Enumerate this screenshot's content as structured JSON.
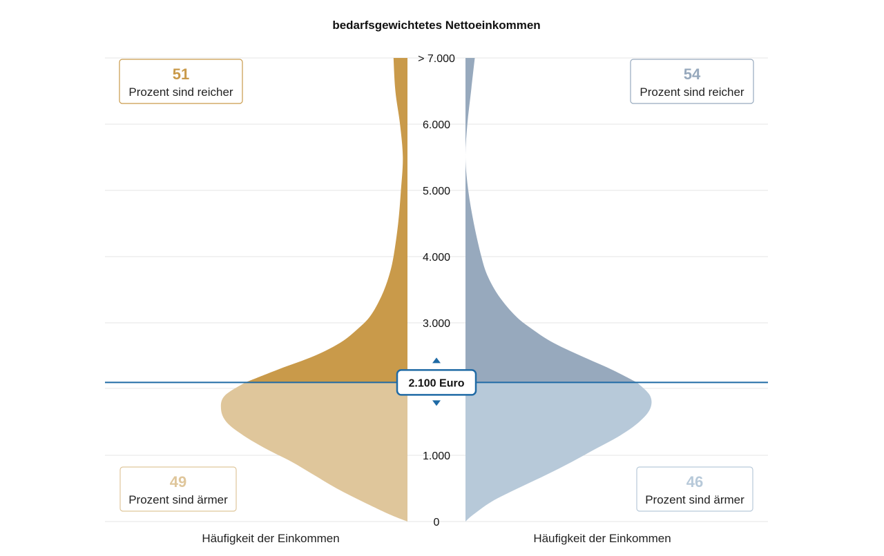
{
  "chart_data": {
    "type": "violin",
    "title": "bedarfsgewichtetes Nettoeinkommen",
    "y_ticks": [
      {
        "value": 0,
        "label": "0"
      },
      {
        "value": 1000,
        "label": "1.000"
      },
      {
        "value": 3000,
        "label": "3.000"
      },
      {
        "value": 4000,
        "label": "4.000"
      },
      {
        "value": 5000,
        "label": "5.000"
      },
      {
        "value": 6000,
        "label": "6.000"
      },
      {
        "value": 7000,
        "label": "> 7.000"
      }
    ],
    "ylim": [
      0,
      7000
    ],
    "grid": true,
    "marker": {
      "value": 2100,
      "label": "2.100 Euro",
      "color": "#1f6aa5"
    },
    "series": [
      {
        "side": "left",
        "xlabel": "Häufigkeit der Einkommen",
        "color_above": "#c99a4a",
        "color_below": "#dfc69b",
        "density": [
          [
            0,
            0.0
          ],
          [
            100,
            0.09
          ],
          [
            300,
            0.24
          ],
          [
            500,
            0.38
          ],
          [
            700,
            0.5
          ],
          [
            900,
            0.62
          ],
          [
            1100,
            0.76
          ],
          [
            1300,
            0.88
          ],
          [
            1500,
            0.97
          ],
          [
            1700,
            1.0
          ],
          [
            1900,
            0.98
          ],
          [
            2100,
            0.87
          ],
          [
            2300,
            0.69
          ],
          [
            2500,
            0.5
          ],
          [
            2700,
            0.36
          ],
          [
            2900,
            0.27
          ],
          [
            3100,
            0.2
          ],
          [
            3400,
            0.14
          ],
          [
            3700,
            0.1
          ],
          [
            4000,
            0.075
          ],
          [
            4500,
            0.05
          ],
          [
            5000,
            0.035
          ],
          [
            5500,
            0.025
          ],
          [
            6000,
            0.04
          ],
          [
            6500,
            0.065
          ],
          [
            7000,
            0.075
          ]
        ],
        "above": {
          "percent": "51",
          "text": "Prozent sind reicher"
        },
        "below": {
          "percent": "49",
          "text": "Prozent sind ärmer"
        }
      },
      {
        "side": "right",
        "xlabel": "Häufigkeit der Einkommen",
        "color_above": "#97a9bd",
        "color_below": "#b7c9d9",
        "density": [
          [
            0,
            0.0
          ],
          [
            100,
            0.04
          ],
          [
            300,
            0.14
          ],
          [
            500,
            0.28
          ],
          [
            700,
            0.43
          ],
          [
            900,
            0.57
          ],
          [
            1100,
            0.7
          ],
          [
            1300,
            0.83
          ],
          [
            1500,
            0.93
          ],
          [
            1700,
            0.99
          ],
          [
            1900,
            0.99
          ],
          [
            2100,
            0.92
          ],
          [
            2300,
            0.78
          ],
          [
            2500,
            0.62
          ],
          [
            2700,
            0.47
          ],
          [
            2900,
            0.36
          ],
          [
            3100,
            0.27
          ],
          [
            3400,
            0.18
          ],
          [
            3700,
            0.12
          ],
          [
            4000,
            0.085
          ],
          [
            4500,
            0.045
          ],
          [
            5000,
            0.015
          ],
          [
            5500,
            0.0
          ],
          [
            6000,
            0.01
          ],
          [
            6500,
            0.03
          ],
          [
            7000,
            0.05
          ]
        ],
        "above": {
          "percent": "54",
          "text": "Prozent sind reicher"
        },
        "below": {
          "percent": "46",
          "text": "Prozent sind ärmer"
        }
      }
    ]
  }
}
